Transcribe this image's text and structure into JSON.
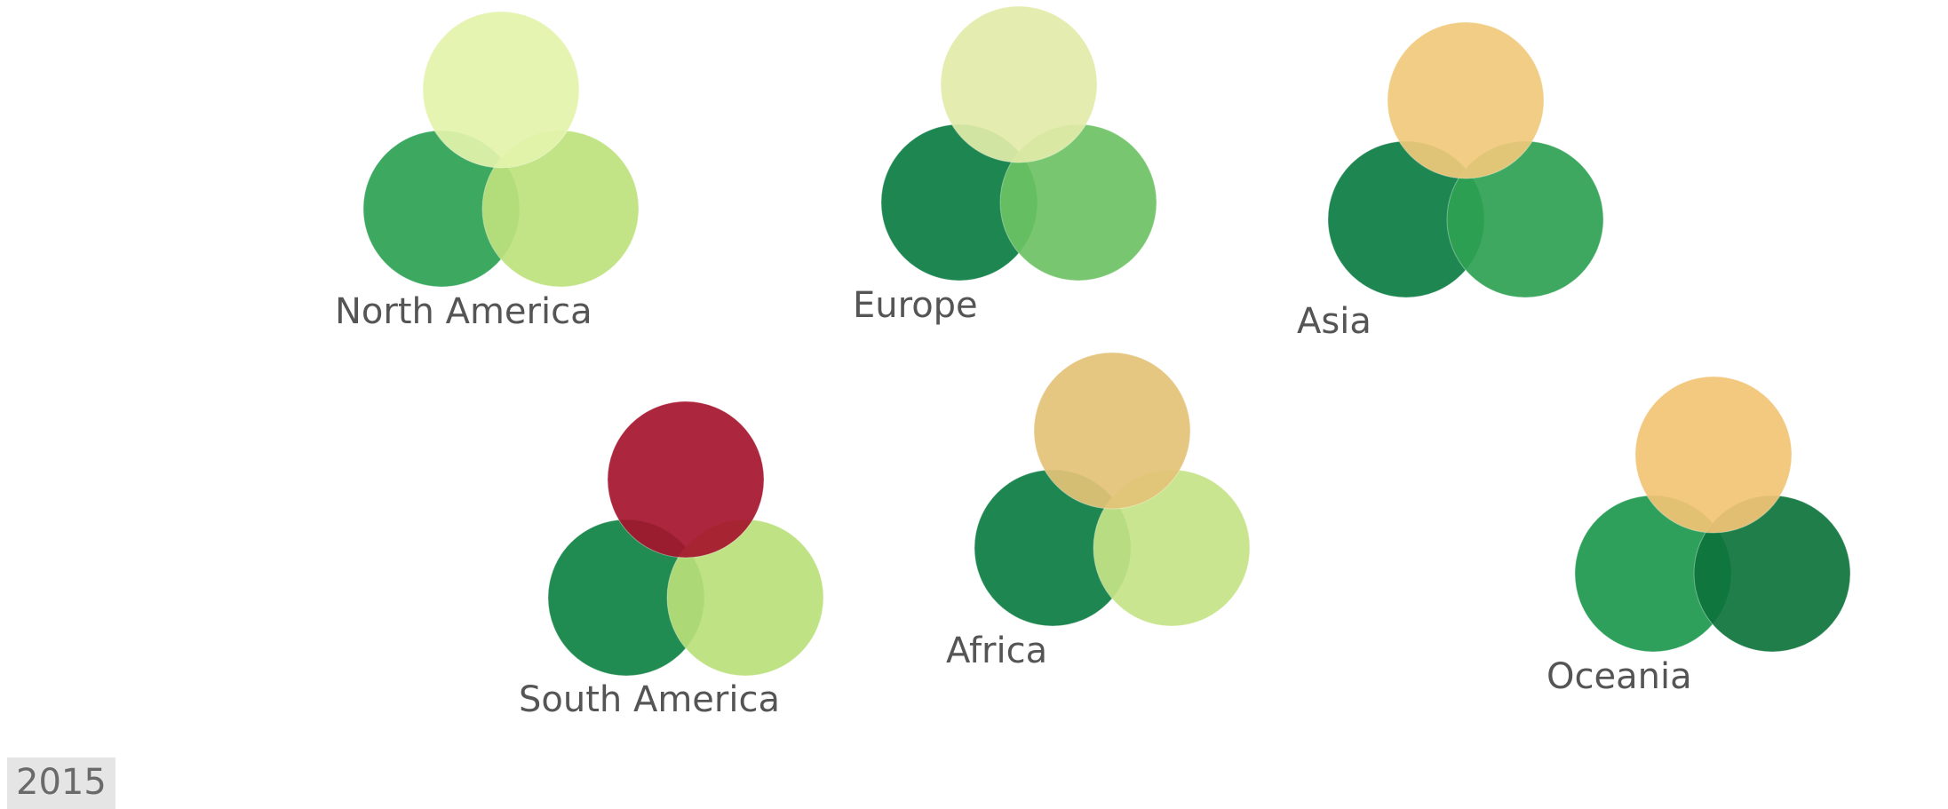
{
  "year_label": "2015",
  "chart_data": {
    "type": "glyph",
    "title": "",
    "groups": [
      {
        "name": "North America",
        "circles": [
          {
            "color": "#2ba152"
          },
          {
            "color": "#bde27d"
          },
          {
            "color": "#e4f3ab"
          }
        ]
      },
      {
        "name": "Europe",
        "circles": [
          {
            "color": "#0b7d42"
          },
          {
            "color": "#6dc264"
          },
          {
            "color": "#e2ec a8"
          }
        ]
      },
      {
        "name": "Asia",
        "circles": [
          {
            "color": "#0b7d42"
          },
          {
            "color": "#2ea153"
          },
          {
            "color": "#f0c97b"
          }
        ]
      },
      {
        "name": "South America",
        "circles": [
          {
            "color": "#0d8242"
          },
          {
            "color": "#b9df7a"
          },
          {
            "color": "#a5132c"
          }
        ]
      },
      {
        "name": "Africa",
        "circles": [
          {
            "color": "#0b7d42"
          },
          {
            "color": "#c4e386"
          },
          {
            "color": "#e3c277"
          }
        ]
      },
      {
        "name": "Oceania",
        "circles": [
          {
            "color": "#1c984e"
          },
          {
            "color": "#0d733b"
          },
          {
            "color": "#f2c374"
          }
        ]
      }
    ]
  }
}
